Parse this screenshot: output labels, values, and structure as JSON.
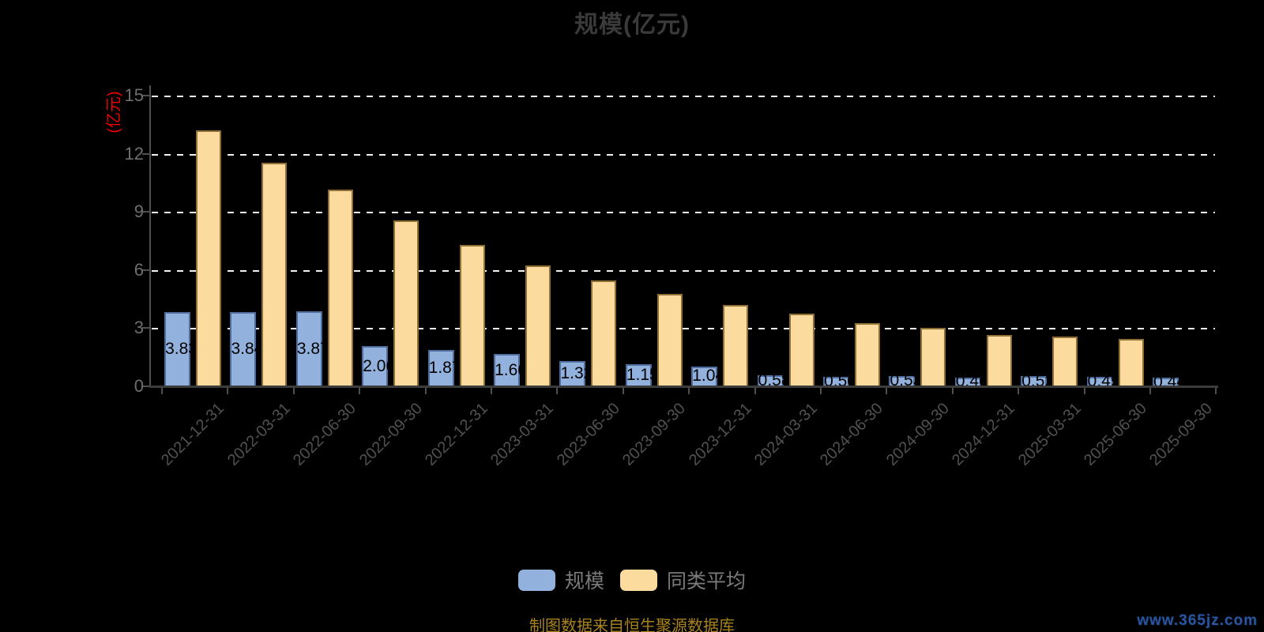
{
  "title": "规模(亿元)",
  "y_axis": {
    "name": "(亿元)",
    "name_color": "#ee0000",
    "ticks": [
      0,
      3,
      6,
      9,
      12,
      15
    ]
  },
  "footer": {
    "source": "制图数据来自恒生聚源数据库",
    "watermark": "www.365jz.com"
  },
  "colors": {
    "background": "#000000",
    "title": "#3a3a3a",
    "gridline": "#f2f2f2",
    "axis": "#4f4f4f",
    "y_tick_label": "#6e6e6e",
    "x_tick_label": "#515151",
    "legend_text": "#7a7a7a",
    "footer_text": "#a8831c",
    "watermark_text": "#2a55a0"
  },
  "chart_data": {
    "type": "bar",
    "title": "规模(亿元)",
    "ylabel": "(亿元)",
    "ylim": [
      0,
      15
    ],
    "grid": "horizontal dashed white lines at 3,6,9,12,15",
    "legend_position": "bottom",
    "categories": [
      "2021-12-31",
      "2022-03-31",
      "2022-06-30",
      "2022-09-30",
      "2022-12-31",
      "2023-03-31",
      "2023-06-30",
      "2023-09-30",
      "2023-12-31",
      "2024-03-31",
      "2024-06-30",
      "2024-09-30",
      "2024-12-31",
      "2025-03-31",
      "2025-06-30",
      "2025-09-30"
    ],
    "series": [
      {
        "name": "规模",
        "color": "#92B2DD",
        "border_color": "#4E6C9C",
        "values": [
          3.83,
          3.84,
          3.87,
          2.06,
          1.87,
          1.66,
          1.32,
          1.15,
          1.04,
          0.58,
          0.5,
          0.53,
          0.46,
          0.52,
          0.49,
          0.44
        ],
        "data_labels": [
          "3.83",
          "3.84",
          "3.87",
          "2.06",
          "1.87",
          "1.66",
          "1.32",
          "1.15",
          "1.04",
          "0.58",
          "0.50",
          "0.53",
          "0.46",
          "0.52",
          "0.49",
          "0.44"
        ]
      },
      {
        "name": "同类平均",
        "color": "#FCDC9E",
        "border_color": "#8F6F35",
        "values": [
          13.2,
          11.55,
          10.15,
          8.55,
          7.3,
          6.25,
          5.45,
          4.75,
          4.2,
          3.75,
          3.25,
          3.0,
          2.65,
          2.55,
          2.45,
          0
        ],
        "data_labels": []
      }
    ]
  }
}
